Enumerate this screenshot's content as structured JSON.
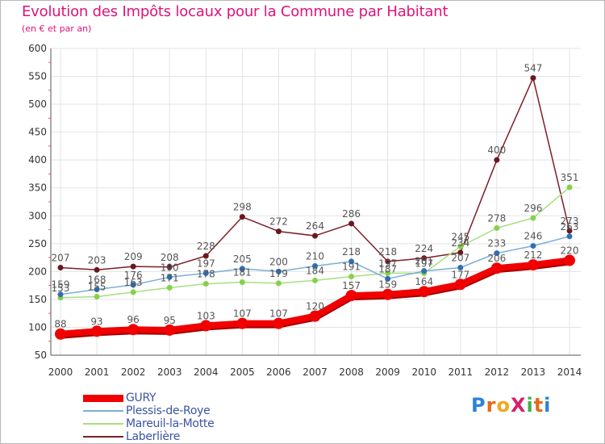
{
  "header": {
    "title": "Evolution des Impôts locaux pour la Commune par Habitant",
    "subtitle": "(en € et par an)"
  },
  "logo": {
    "text": "ProXiti",
    "letters": [
      "P",
      "r",
      "o",
      "X",
      "i",
      "t",
      "i"
    ],
    "colors": [
      "#2b83d6",
      "#e36b19",
      "#f2a81d",
      "#d71f6b",
      "#3fb14a",
      "#e36b19",
      "#2b83d6"
    ]
  },
  "chart_data": {
    "type": "line",
    "title": "Evolution des Impôts locaux pour la Commune par Habitant",
    "subtitle": "(en € et par an)",
    "xlabel": "",
    "ylabel": "",
    "ylim": [
      50,
      600
    ],
    "yticks": [
      50,
      100,
      150,
      200,
      250,
      300,
      350,
      400,
      450,
      500,
      550,
      600
    ],
    "x": [
      "2000",
      "2001",
      "2002",
      "2003",
      "2004",
      "2005",
      "2006",
      "2007",
      "2008",
      "2009",
      "2010",
      "2011",
      "2012",
      "2013",
      "2014"
    ],
    "grid": true,
    "legend_position": "bottom-left",
    "series": [
      {
        "name": "Laberlière",
        "color": "#7b1f26",
        "marker": "#6a1820",
        "values": [
          207,
          203,
          209,
          208,
          228,
          298,
          272,
          264,
          286,
          218,
          224,
          234,
          400,
          547,
          273
        ]
      },
      {
        "name": "Mareuil-la-Motte",
        "color": "#a6df82",
        "marker": "#86d04a",
        "values": [
          153,
          155,
          163,
          171,
          178,
          181,
          179,
          184,
          191,
          197,
          197,
          245,
          278,
          296,
          351
        ]
      },
      {
        "name": "Plessis-de-Roye",
        "color": "#7aaed8",
        "marker": "#2f6fb4",
        "values": [
          159,
          168,
          176,
          190,
          197,
          205,
          200,
          210,
          218,
          187,
          201,
          207,
          233,
          246,
          263
        ]
      },
      {
        "name": "GURY",
        "color": "#f00000",
        "marker": "#f00000",
        "values": [
          88,
          93,
          96,
          95,
          103,
          107,
          107,
          120,
          157,
          159,
          164,
          177,
          206,
          212,
          220
        ]
      }
    ],
    "legend_order": [
      "GURY",
      "Plessis-de-Roye",
      "Mareuil-la-Motte",
      "Laberlière"
    ]
  }
}
